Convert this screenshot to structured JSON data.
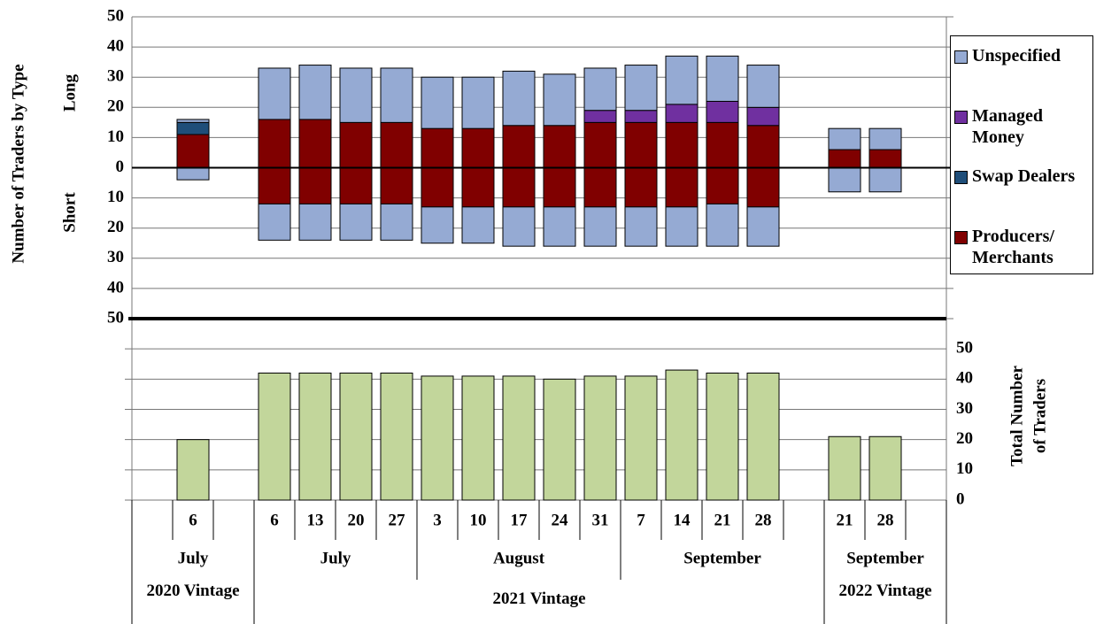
{
  "chart_data": [
    {
      "type": "stacked-bar",
      "y_label": "Number of Traders by Type",
      "long_label": "Long",
      "short_label": "Short",
      "categories": [
        null,
        "6",
        null,
        "6",
        "13",
        "20",
        "27",
        "3",
        "10",
        "17",
        "24",
        "31",
        "7",
        "14",
        "21",
        "28",
        null,
        "21",
        "28",
        null
      ],
      "months": [
        "July",
        "July",
        "August",
        "September",
        "September"
      ],
      "vintages": [
        "2020 Vintage",
        "2021 Vintage",
        "2022 Vintage"
      ],
      "ylim": [
        -50,
        50
      ],
      "yticks": [
        {
          "value": -50,
          "label": "50"
        },
        {
          "value": -40,
          "label": "40"
        },
        {
          "value": -30,
          "label": "30"
        },
        {
          "value": -20,
          "label": "20"
        },
        {
          "value": -10,
          "label": "10"
        },
        0,
        10,
        20,
        30,
        40,
        50
      ],
      "grid": true,
      "legend": "right",
      "series": [
        {
          "name": "Producers/ Merchants",
          "color": "#800000",
          "values": [
            null,
            11,
            null,
            16,
            16,
            15,
            15,
            13,
            13,
            14,
            14,
            15,
            15,
            15,
            15,
            14,
            null,
            6,
            6,
            null
          ],
          "short": [
            null,
            0,
            null,
            -12,
            -12,
            -12,
            -12,
            -13,
            -13,
            -13,
            -13,
            -13,
            -13,
            -13,
            -12,
            -13,
            null,
            0,
            0,
            null
          ]
        },
        {
          "name": "Swap Dealers",
          "color": "#1f4e79",
          "values": [
            null,
            4,
            null,
            0,
            0,
            0,
            0,
            0,
            0,
            0,
            0,
            0,
            0,
            0,
            0,
            0,
            null,
            0,
            0,
            null
          ],
          "short": [
            null,
            0,
            null,
            0,
            0,
            0,
            0,
            0,
            0,
            0,
            0,
            0,
            0,
            0,
            0,
            0,
            null,
            0,
            0,
            null
          ]
        },
        {
          "name": "Managed Money",
          "color": "#7030a0",
          "values": [
            null,
            0,
            null,
            0,
            0,
            0,
            0,
            0,
            0,
            0,
            0,
            4,
            4,
            6,
            7,
            6,
            null,
            0,
            0,
            null
          ],
          "short": [
            null,
            0,
            null,
            0,
            0,
            0,
            0,
            0,
            0,
            0,
            0,
            0,
            0,
            0,
            0,
            0,
            null,
            0,
            0,
            null
          ]
        },
        {
          "name": "Unspecified",
          "color": "#95aad3",
          "values": [
            null,
            1,
            null,
            17,
            18,
            18,
            18,
            17,
            17,
            18,
            17,
            14,
            15,
            16,
            15,
            14,
            null,
            7,
            7,
            null
          ],
          "short": [
            null,
            -4,
            null,
            -12,
            -12,
            -12,
            -12,
            -12,
            -12,
            -13,
            -13,
            -13,
            -13,
            -13,
            -14,
            -13,
            null,
            -8,
            -8,
            null
          ]
        }
      ]
    },
    {
      "type": "bar",
      "y_label": [
        "Total Number",
        "of Traders"
      ],
      "color": "#c2d69b",
      "values": [
        null,
        20,
        null,
        42,
        42,
        42,
        42,
        41,
        41,
        41,
        40,
        41,
        41,
        43,
        42,
        42,
        null,
        21,
        21,
        null
      ],
      "ylim": [
        0,
        60
      ],
      "yticks": [
        0,
        10,
        20,
        30,
        40,
        50
      ],
      "grid": true
    }
  ]
}
